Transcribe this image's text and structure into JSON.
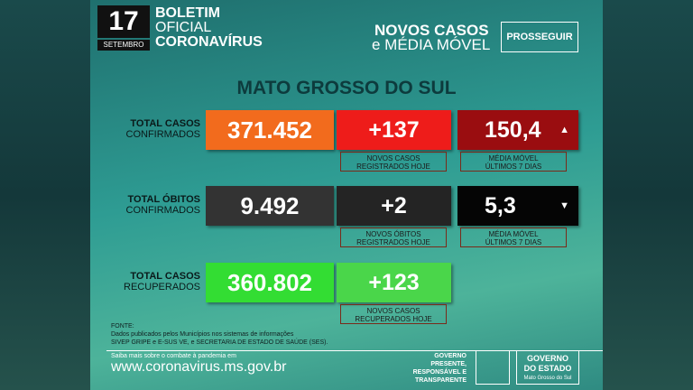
{
  "header": {
    "day": "17",
    "month": "SETEMBRO",
    "title_lines": [
      "BOLETIM",
      "OFICIAL",
      "CORONAVÍRUS"
    ],
    "topic_lines": [
      "NOVOS CASOS",
      "e MÉDIA MÓVEL"
    ],
    "badge": "PROSSEGUIR"
  },
  "region": "MATO GROSSO DO SUL",
  "rows": [
    {
      "label": [
        "TOTAL CASOS",
        "CONFIRMADOS"
      ],
      "total": "371.452",
      "new": "+137",
      "new_caption": [
        "NOVOS CASOS",
        "REGISTRADOS HOJE"
      ],
      "average": "150,4",
      "average_caption": [
        "MÉDIA MÓVEL",
        "ÚLTIMOS 7 DIAS"
      ]
    },
    {
      "label": [
        "TOTAL ÓBITOS",
        "CONFIRMADOS"
      ],
      "total": "9.492",
      "new": "+2",
      "new_caption": [
        "NOVOS ÓBITOS",
        "REGISTRADOS HOJE"
      ],
      "average": "5,3",
      "average_caption": [
        "MÉDIA MÓVEL",
        "ÚLTIMOS 7 DIAS"
      ]
    },
    {
      "label": [
        "TOTAL CASOS",
        "RECUPERADOS"
      ],
      "total": "360.802",
      "new": "+123",
      "new_caption": [
        "NOVOS CASOS",
        "RECUPERADOS HOJE"
      ]
    }
  ],
  "source": {
    "title": "FONTE:",
    "lines": [
      "Dados publicados pelos Municípios nos sistemas de informações",
      "SIVEP GRIPE e E-SUS VE, e SECRETARIA DE ESTADO DE SAÚDE (SES)."
    ]
  },
  "footer": {
    "prompt": "Saiba mais sobre o combate à pandemia em",
    "url": "www.coronavirus.ms.gov.br",
    "slogan": [
      "GOVERNO",
      "PRESENTE,",
      "RESPONSÁVEL E",
      "TRANSPARENTE"
    ],
    "logo": [
      "GOVERNO",
      "DO ESTADO",
      "Mato Grosso do Sul"
    ]
  }
}
